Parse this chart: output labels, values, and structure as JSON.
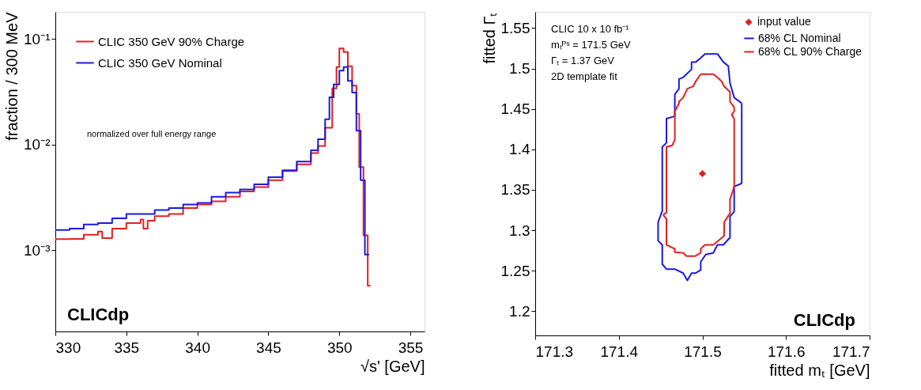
{
  "chart_data": [
    {
      "type": "step",
      "xlabel": "√s' [GeV]",
      "ylabel": "fraction / 300 MeV",
      "log": true,
      "grid": false,
      "legend": "top left",
      "xlim": [
        330,
        356
      ],
      "xticks": [
        330,
        335,
        340,
        345,
        350,
        355
      ],
      "ylim": [
        0.00017,
        0.18
      ],
      "yticks": [
        {
          "value": 0.001,
          "label": "10⁻³"
        },
        {
          "value": 0.01,
          "label": "10⁻²"
        },
        {
          "value": 0.1,
          "label": "10⁻¹"
        }
      ],
      "annotations": [
        "normalized over full energy range",
        "CLICdp"
      ],
      "series": [
        {
          "name": "CLIC 350 GeV 90% Charge",
          "color": "#e02020",
          "x": [
            330,
            331,
            332,
            333,
            333.3,
            334,
            335,
            336,
            336.2,
            336.5,
            337,
            338,
            339,
            340,
            341,
            342,
            343,
            344,
            345,
            346,
            347,
            348,
            348.5,
            349,
            349.5,
            349.8,
            350,
            350.3,
            350.6,
            350.9,
            351.2,
            351.4,
            351.7,
            352.0,
            352.2
          ],
          "values": [
            0.00127,
            0.00128,
            0.0014,
            0.0015,
            0.0013,
            0.0016,
            0.0018,
            0.00195,
            0.0016,
            0.0019,
            0.0021,
            0.0022,
            0.0025,
            0.0027,
            0.0029,
            0.0032,
            0.0036,
            0.00395,
            0.0046,
            0.0056,
            0.0065,
            0.0083,
            0.0097,
            0.0144,
            0.034,
            0.054,
            0.081,
            0.075,
            0.055,
            0.036,
            0.0195,
            0.0061,
            0.00138,
            0.00046,
            0.00046
          ]
        },
        {
          "name": "CLIC 350 GeV Nominal",
          "color": "#1a1ae0",
          "x": [
            330,
            331,
            332,
            333,
            334,
            335,
            336,
            337,
            338,
            339,
            340,
            341,
            342,
            343,
            344,
            345,
            346,
            347,
            348,
            348.5,
            349,
            349.3,
            349.6,
            350,
            350.3,
            350.6,
            350.9,
            351.2,
            351.5,
            351.8,
            352.1
          ],
          "values": [
            0.00155,
            0.0016,
            0.00175,
            0.0018,
            0.002,
            0.0022,
            0.0022,
            0.0024,
            0.0025,
            0.0027,
            0.0028,
            0.0032,
            0.0035,
            0.00375,
            0.0042,
            0.0049,
            0.0057,
            0.0069,
            0.0088,
            0.0112,
            0.0173,
            0.028,
            0.037,
            0.05,
            0.054,
            0.04,
            0.031,
            0.0135,
            0.0046,
            0.00091,
            0.00091
          ]
        }
      ]
    },
    {
      "type": "line",
      "xlabel": "fitted mₜ [GeV]",
      "ylabel": "fitted Γₜ",
      "grid": false,
      "legend": "top right",
      "marker": "none",
      "xlim": [
        171.3,
        171.7
      ],
      "xticks": [
        171.3,
        171.4,
        171.5,
        171.6,
        171.7
      ],
      "ylim": [
        1.17,
        1.57
      ],
      "yticks": [
        1.2,
        1.25,
        1.3,
        1.35,
        1.4,
        1.45,
        1.5,
        1.55
      ],
      "annotations": [
        "CLIC 10 x 10 fb⁻¹",
        "mₜᴾˢ = 171.5 GeV",
        "Γₜ = 1.37 GeV",
        "2D template fit",
        "CLICdp"
      ],
      "series": [
        {
          "name": "input value",
          "type": "scatter",
          "marker": "diamond",
          "color": "#e02020",
          "x": [
            171.5
          ],
          "values": [
            1.37
          ]
        },
        {
          "name": "68% CL Nominal",
          "color": "#1a1ae0",
          "x": [
            171.447,
            171.452,
            171.452,
            171.457,
            171.457,
            171.467,
            171.467,
            171.472,
            171.472,
            171.477,
            171.487,
            171.487,
            171.492,
            171.498,
            171.503,
            171.518,
            171.525,
            171.531,
            171.533,
            171.538,
            171.547,
            null,
            171.447,
            171.447,
            171.452,
            171.452,
            171.457,
            171.467,
            171.477,
            171.482,
            171.487,
            171.492,
            171.498,
            171.498,
            171.504,
            171.513,
            171.518,
            171.525,
            171.533,
            171.533,
            171.538,
            171.538,
            171.547,
            171.547
          ],
          "values": [
            1.31,
            1.324,
            1.403,
            1.408,
            1.438,
            1.441,
            1.468,
            1.475,
            1.487,
            1.489,
            1.499,
            1.508,
            1.508,
            1.513,
            1.518,
            1.518,
            1.508,
            1.503,
            1.482,
            1.464,
            1.457,
            null,
            1.31,
            1.287,
            1.282,
            1.258,
            1.252,
            1.252,
            1.247,
            1.238,
            1.247,
            1.247,
            1.251,
            1.261,
            1.27,
            1.272,
            1.282,
            1.282,
            1.291,
            1.317,
            1.323,
            1.354,
            1.358,
            1.457
          ]
        },
        {
          "name": "68% CL 90% Charge",
          "color": "#e02020",
          "x": [
            171.453,
            171.457,
            171.457,
            171.464,
            171.467,
            171.467,
            171.472,
            171.472,
            171.477,
            171.482,
            171.489,
            171.492,
            171.498,
            171.513,
            171.518,
            171.523,
            171.526,
            171.533,
            171.533,
            171.538,
            171.538,
            171.535,
            171.538,
            null,
            171.453,
            171.457,
            171.457,
            171.467,
            171.467,
            171.477,
            171.481,
            171.491,
            171.498,
            171.498,
            171.503,
            171.513,
            171.526,
            171.526,
            171.533,
            171.533,
            171.538,
            171.538
          ],
          "values": [
            1.319,
            1.322,
            1.403,
            1.405,
            1.412,
            1.447,
            1.457,
            1.459,
            1.464,
            1.475,
            1.478,
            1.484,
            1.493,
            1.493,
            1.489,
            1.484,
            1.478,
            1.471,
            1.459,
            1.452,
            1.447,
            1.443,
            1.438,
            null,
            1.319,
            1.314,
            1.282,
            1.277,
            1.273,
            1.272,
            1.268,
            1.268,
            1.272,
            1.277,
            1.282,
            1.282,
            1.293,
            1.31,
            1.321,
            1.338,
            1.354,
            1.438
          ]
        }
      ]
    }
  ]
}
